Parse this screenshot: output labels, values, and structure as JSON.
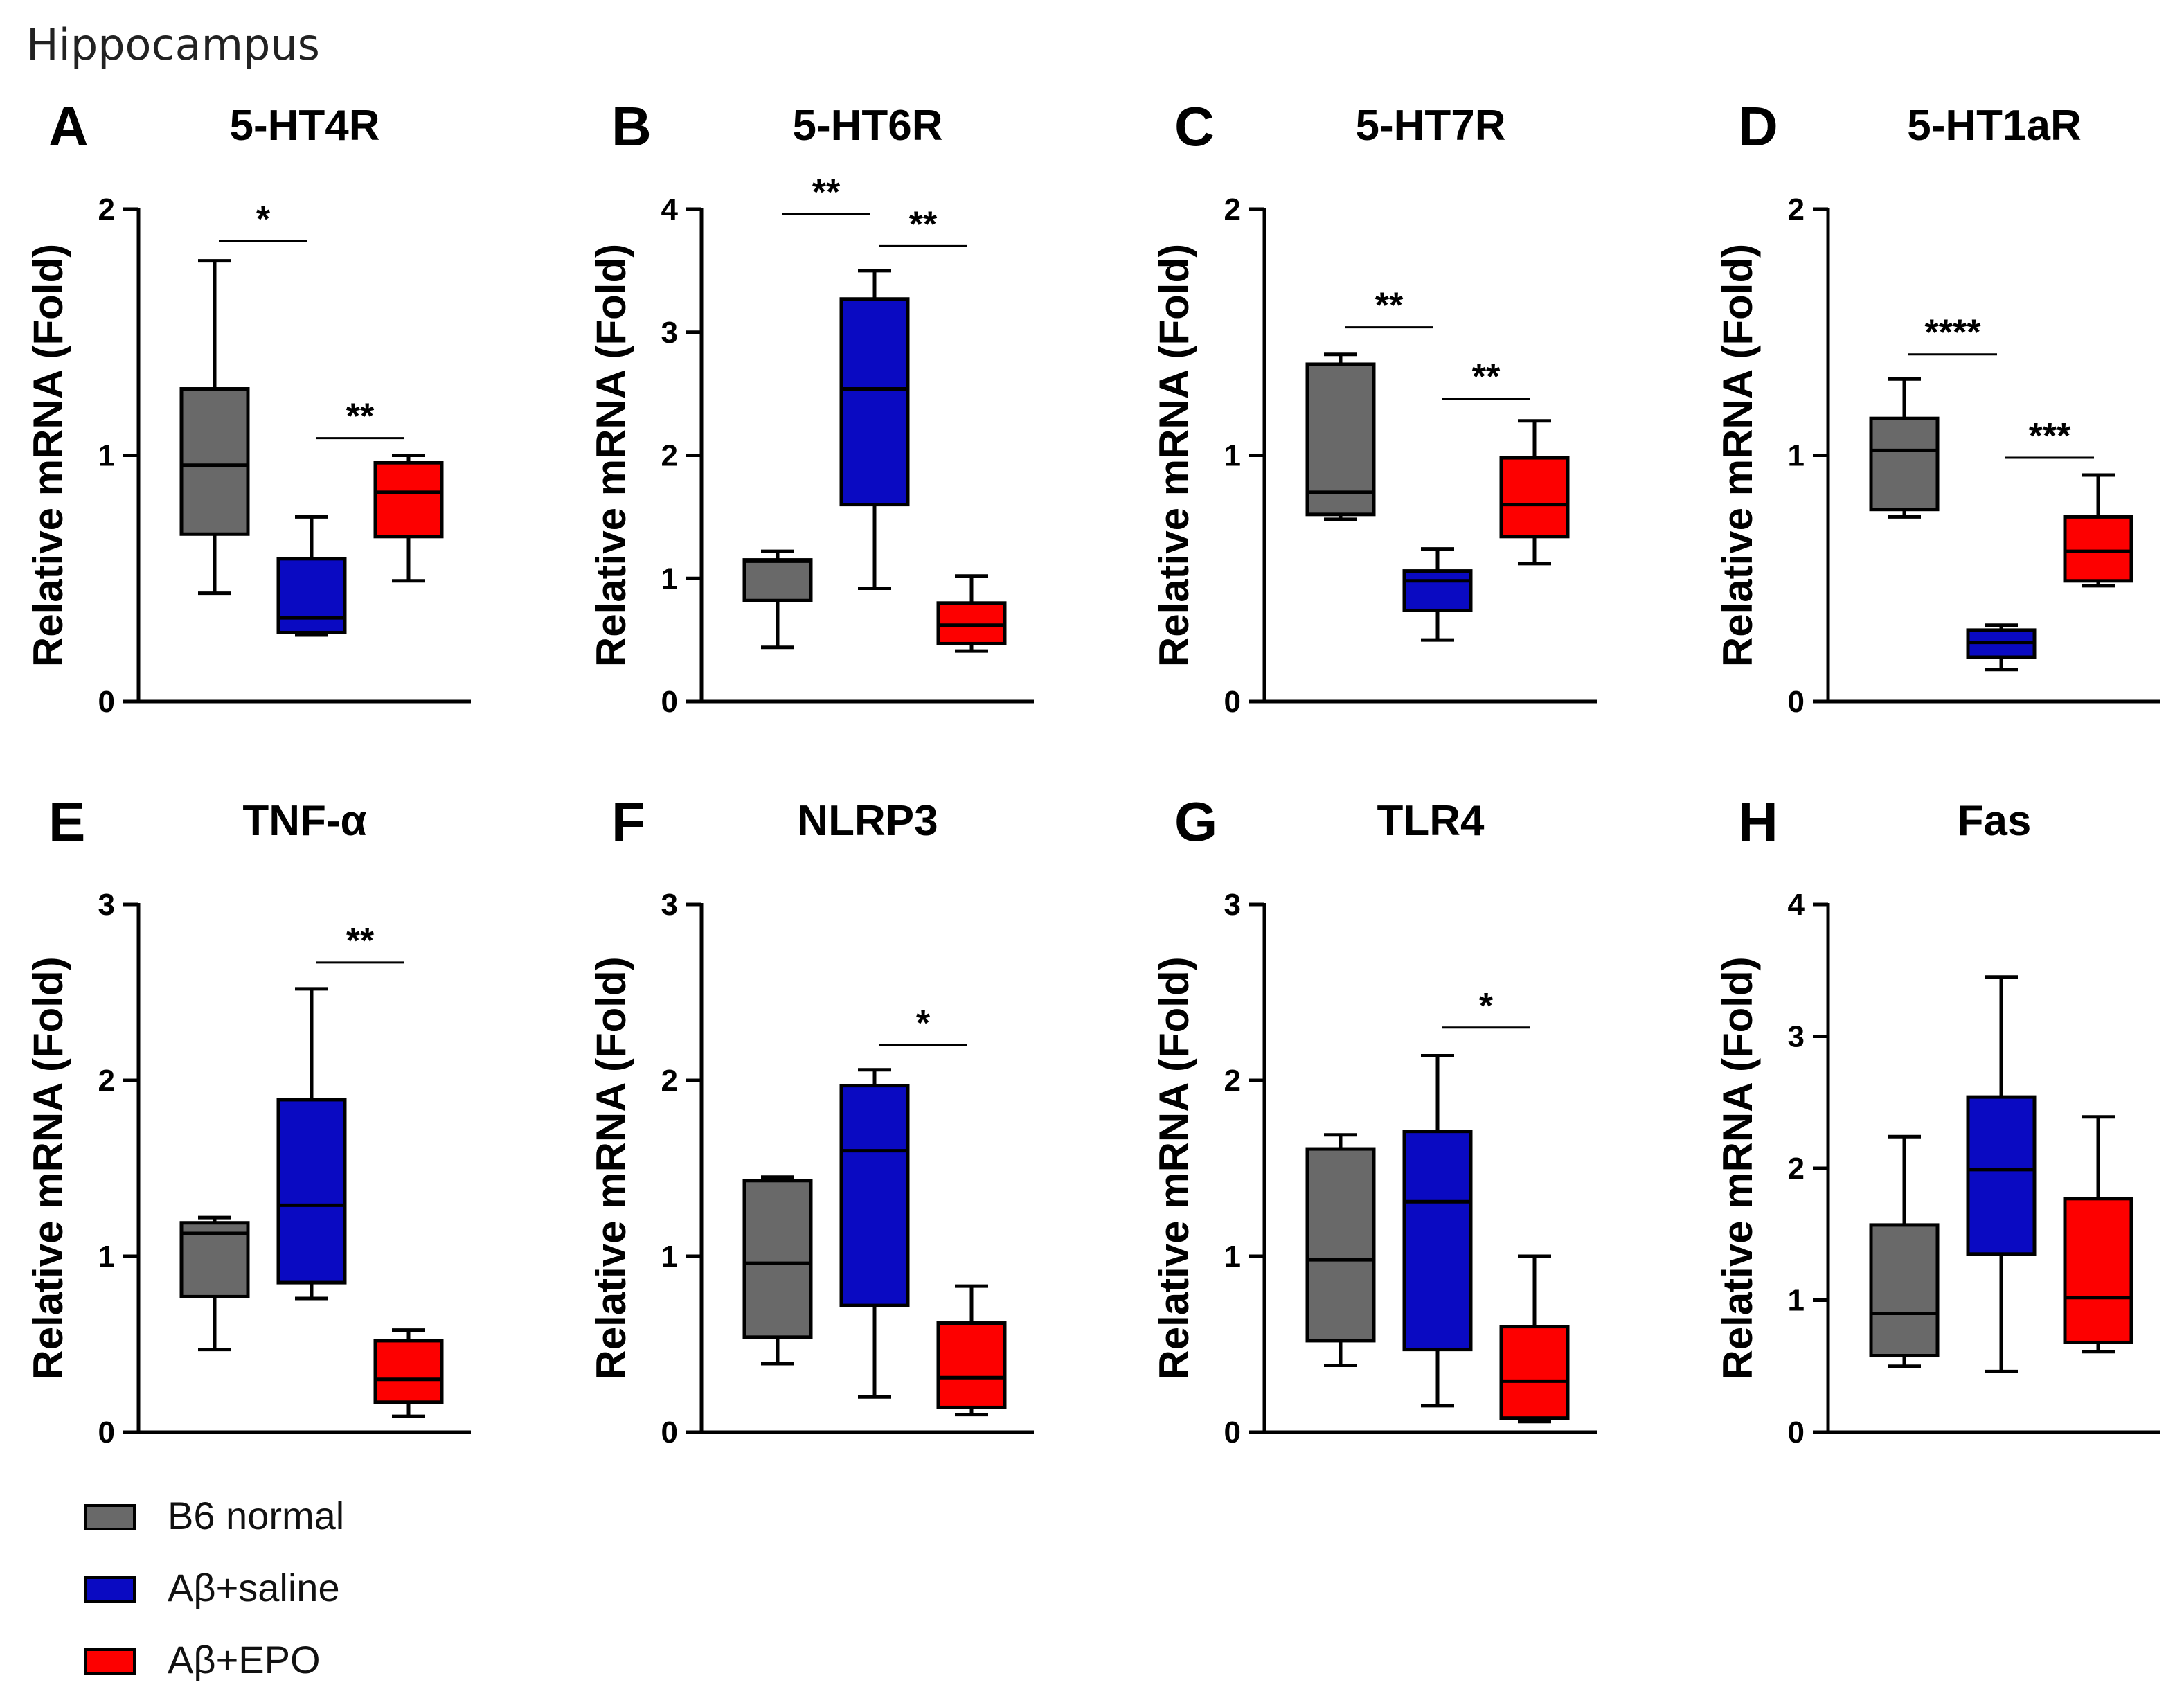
{
  "figure": {
    "title": "Hippocampus"
  },
  "colors": {
    "B6 normal": "#696969",
    "Aβ+saline": "#0a0ac2",
    "Aβ+EPO": "#fd0000"
  },
  "legend": [
    {
      "label": "B6 normal",
      "color": "#696969"
    },
    {
      "label": "Aβ+saline",
      "color": "#0a0ac2"
    },
    {
      "label": "Aβ+EPO",
      "color": "#fd0000"
    }
  ],
  "chart_data": [
    {
      "type": "box",
      "letter": "A",
      "title": "5-HT4R",
      "ylabel": "Relative mRNA (Fold)",
      "ylim": [
        0,
        2
      ],
      "yticks": [
        "0",
        "1",
        "2"
      ],
      "groups": [
        "B6 normal",
        "Aβ+saline",
        "Aβ+EPO"
      ],
      "boxes": [
        {
          "min": 0.44,
          "q1": 0.68,
          "median": 0.96,
          "q3": 1.27,
          "max": 1.79
        },
        {
          "min": 0.27,
          "q1": 0.28,
          "median": 0.34,
          "q3": 0.58,
          "max": 0.75
        },
        {
          "min": 0.49,
          "q1": 0.67,
          "median": 0.85,
          "q3": 0.97,
          "max": 1.0
        }
      ],
      "significance": [
        {
          "from": 0,
          "to": 1,
          "y": 1.87,
          "label": "*"
        },
        {
          "from": 1,
          "to": 2,
          "y": 1.07,
          "label": "**"
        }
      ]
    },
    {
      "type": "box",
      "letter": "B",
      "title": "5-HT6R",
      "ylabel": "Relative mRNA (Fold)",
      "ylim": [
        0,
        4
      ],
      "yticks": [
        "0",
        "1",
        "2",
        "3",
        "4"
      ],
      "groups": [
        "B6 normal",
        "Aβ+saline",
        "Aβ+EPO"
      ],
      "boxes": [
        {
          "min": 0.44,
          "q1": 0.82,
          "median": 1.14,
          "q3": 1.15,
          "max": 1.22
        },
        {
          "min": 0.92,
          "q1": 1.6,
          "median": 2.54,
          "q3": 3.27,
          "max": 3.5
        },
        {
          "min": 0.41,
          "q1": 0.47,
          "median": 0.62,
          "q3": 0.8,
          "max": 1.02
        }
      ],
      "significance": [
        {
          "from": 0,
          "to": 1,
          "y": 3.96,
          "label": "**"
        },
        {
          "from": 1,
          "to": 2,
          "y": 3.7,
          "label": "**"
        }
      ]
    },
    {
      "type": "box",
      "letter": "C",
      "title": "5-HT7R",
      "ylabel": "Relative mRNA (Fold)",
      "ylim": [
        0,
        2
      ],
      "yticks": [
        "0",
        "1",
        "2"
      ],
      "groups": [
        "B6 normal",
        "Aβ+saline",
        "Aβ+EPO"
      ],
      "boxes": [
        {
          "min": 0.74,
          "q1": 0.76,
          "median": 0.85,
          "q3": 1.37,
          "max": 1.41
        },
        {
          "min": 0.25,
          "q1": 0.37,
          "median": 0.49,
          "q3": 0.53,
          "max": 0.62
        },
        {
          "min": 0.56,
          "q1": 0.67,
          "median": 0.8,
          "q3": 0.99,
          "max": 1.14
        }
      ],
      "significance": [
        {
          "from": 0,
          "to": 1,
          "y": 1.52,
          "label": "**"
        },
        {
          "from": 1,
          "to": 2,
          "y": 1.23,
          "label": "**"
        }
      ]
    },
    {
      "type": "box",
      "letter": "D",
      "title": "5-HT1aR",
      "ylabel": "Relative mRNA (Fold)",
      "ylim": [
        0,
        2
      ],
      "yticks": [
        "0",
        "1",
        "2"
      ],
      "groups": [
        "B6 normal",
        "Aβ+saline",
        "Aβ+EPO"
      ],
      "boxes": [
        {
          "min": 0.75,
          "q1": 0.78,
          "median": 1.02,
          "q3": 1.15,
          "max": 1.31
        },
        {
          "min": 0.13,
          "q1": 0.18,
          "median": 0.24,
          "q3": 0.29,
          "max": 0.31
        },
        {
          "min": 0.47,
          "q1": 0.49,
          "median": 0.61,
          "q3": 0.75,
          "max": 0.92
        }
      ],
      "significance": [
        {
          "from": 0,
          "to": 1,
          "y": 1.41,
          "label": "****"
        },
        {
          "from": 1,
          "to": 2,
          "y": 0.99,
          "label": "***"
        }
      ]
    },
    {
      "type": "box",
      "letter": "E",
      "title": "TNF-α",
      "ylabel": "Relative mRNA (Fold)",
      "ylim": [
        0,
        3
      ],
      "yticks": [
        "0",
        "1",
        "2",
        "3"
      ],
      "groups": [
        "B6 normal",
        "Aβ+saline",
        "Aβ+EPO"
      ],
      "boxes": [
        {
          "min": 0.47,
          "q1": 0.77,
          "median": 1.13,
          "q3": 1.19,
          "max": 1.22
        },
        {
          "min": 0.76,
          "q1": 0.85,
          "median": 1.29,
          "q3": 1.89,
          "max": 2.52
        },
        {
          "min": 0.09,
          "q1": 0.17,
          "median": 0.3,
          "q3": 0.52,
          "max": 0.58
        }
      ],
      "significance": [
        {
          "from": 1,
          "to": 2,
          "y": 2.67,
          "label": "**"
        }
      ]
    },
    {
      "type": "box",
      "letter": "F",
      "title": "NLRP3",
      "ylabel": "Relative mRNA (Fold)",
      "ylim": [
        0,
        3
      ],
      "yticks": [
        "0",
        "1",
        "2",
        "3"
      ],
      "groups": [
        "B6 normal",
        "Aβ+saline",
        "Aβ+EPO"
      ],
      "boxes": [
        {
          "min": 0.39,
          "q1": 0.54,
          "median": 0.96,
          "q3": 1.43,
          "max": 1.45
        },
        {
          "min": 0.2,
          "q1": 0.72,
          "median": 1.6,
          "q3": 1.97,
          "max": 2.06
        },
        {
          "min": 0.1,
          "q1": 0.14,
          "median": 0.31,
          "q3": 0.62,
          "max": 0.83
        }
      ],
      "significance": [
        {
          "from": 1,
          "to": 2,
          "y": 2.2,
          "label": "*"
        }
      ]
    },
    {
      "type": "box",
      "letter": "G",
      "title": "TLR4",
      "ylabel": "Relative mRNA (Fold)",
      "ylim": [
        0,
        3
      ],
      "yticks": [
        "0",
        "1",
        "2",
        "3"
      ],
      "groups": [
        "B6 normal",
        "Aβ+saline",
        "Aβ+EPO"
      ],
      "boxes": [
        {
          "min": 0.38,
          "q1": 0.52,
          "median": 0.98,
          "q3": 1.61,
          "max": 1.69
        },
        {
          "min": 0.15,
          "q1": 0.47,
          "median": 1.31,
          "q3": 1.71,
          "max": 2.14
        },
        {
          "min": 0.06,
          "q1": 0.08,
          "median": 0.29,
          "q3": 0.6,
          "max": 1.0
        }
      ],
      "significance": [
        {
          "from": 1,
          "to": 2,
          "y": 2.3,
          "label": "*"
        }
      ]
    },
    {
      "type": "box",
      "letter": "H",
      "title": "Fas",
      "ylabel": "Relative mRNA (Fold)",
      "ylim": [
        0,
        4
      ],
      "yticks": [
        "0",
        "1",
        "2",
        "3",
        "4"
      ],
      "groups": [
        "B6 normal",
        "Aβ+saline",
        "Aβ+EPO"
      ],
      "boxes": [
        {
          "min": 0.5,
          "q1": 0.58,
          "median": 0.9,
          "q3": 1.57,
          "max": 2.24
        },
        {
          "min": 0.46,
          "q1": 1.35,
          "median": 1.99,
          "q3": 2.54,
          "max": 3.45
        },
        {
          "min": 0.61,
          "q1": 0.68,
          "median": 1.02,
          "q3": 1.77,
          "max": 2.39
        }
      ],
      "significance": []
    }
  ]
}
